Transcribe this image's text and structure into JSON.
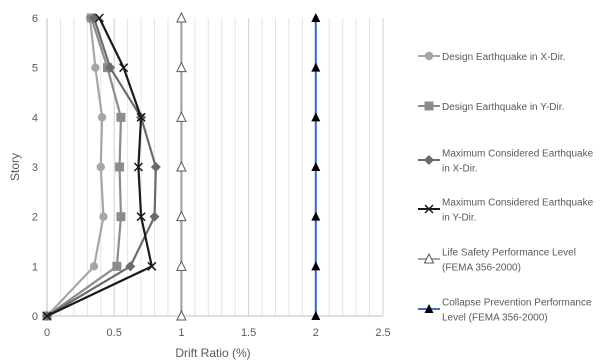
{
  "chart_data": {
    "type": "line",
    "xlabel": "Drift Ratio (%)",
    "ylabel": "Story",
    "xlim": [
      0,
      2.5
    ],
    "ylim": [
      0,
      6
    ],
    "x_ticks": [
      "0",
      "0.5",
      "1",
      "1.5",
      "2",
      "2.5"
    ],
    "y_ticks": [
      "0",
      "1",
      "2",
      "3",
      "4",
      "5",
      "6"
    ],
    "grid": "vertical gridlines every 0.1",
    "legend_position": "right",
    "y": [
      0,
      1,
      2,
      3,
      4,
      5,
      6
    ],
    "series": [
      {
        "name": "Design Earthquake in X-Dir.",
        "marker": "circle",
        "color": "#a6a6a6",
        "x": [
          0,
          0.35,
          0.42,
          0.4,
          0.41,
          0.36,
          0.32
        ]
      },
      {
        "name": "Design Earthquake in Y-Dir.",
        "marker": "square",
        "color": "#8c8c8c",
        "x": [
          0,
          0.52,
          0.55,
          0.54,
          0.55,
          0.45,
          0.33
        ]
      },
      {
        "name": "Maximum Considered Earthquake in X-Dir.",
        "marker": "diamond",
        "color": "#6b6b6b",
        "x": [
          0,
          0.62,
          0.8,
          0.81,
          0.7,
          0.47,
          0.35
        ]
      },
      {
        "name": "Maximum Considered Earthquake in Y-Dir.",
        "marker": "x",
        "color": "#1a1a1a",
        "x": [
          0,
          0.78,
          0.7,
          0.68,
          0.7,
          0.57,
          0.39
        ]
      },
      {
        "name": "Life Safety Performance Level (FEMA 356-2000)",
        "marker": "triangle-open",
        "color": "#a6a6a6",
        "x": [
          1,
          1,
          1,
          1,
          1,
          1,
          1
        ]
      },
      {
        "name": "Collapse Prevention Performance Level (FEMA 356-2000)",
        "marker": "triangle-filled",
        "color": "#4472c4",
        "x": [
          2,
          2,
          2,
          2,
          2,
          2,
          2
        ]
      }
    ],
    "legend": [
      {
        "lines": [
          "Design Earthquake in X-Dir."
        ]
      },
      {
        "lines": [
          "Design Earthquake in Y-Dir."
        ]
      },
      {
        "lines": [
          "Maximum Considered Earthquake",
          "in X-Dir."
        ]
      },
      {
        "lines": [
          "Maximum Considered Earthquake",
          "in Y-Dir."
        ]
      },
      {
        "lines": [
          "Life Safety Performance Level",
          "(FEMA 356-2000)"
        ]
      },
      {
        "lines": [
          "Collapse Prevention Performance",
          "Level (FEMA 356-2000)"
        ]
      }
    ]
  }
}
